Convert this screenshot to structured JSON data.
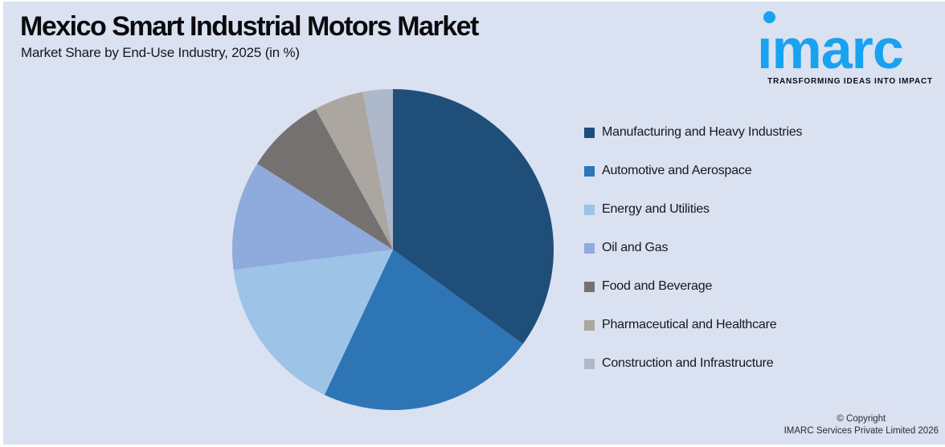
{
  "header": {
    "title": "Mexico Smart Industrial Motors Market",
    "subtitle": "Market Share by End-Use Industry, 2025 (in %)"
  },
  "logo": {
    "text": "imarc",
    "tagline": "TRANSFORMING IDEAS INTO IMPACT",
    "brand_color": "#18A2F0",
    "tagline_color": "#0D0F19"
  },
  "footer": {
    "line1": "© Copyright",
    "line2": "IMARC Services Private Limited 2026"
  },
  "colors": {
    "background": "#DAE1F0",
    "title_text": "#0B0B0E"
  },
  "chart_data": {
    "type": "pie",
    "title": "Mexico Smart Industrial Motors Market",
    "subtitle": "Market Share by End-Use Industry, 2025 (in %)",
    "unit": "%",
    "legend_position": "right",
    "start_angle_deg": 0,
    "direction": "clockwise",
    "categories": [
      "Manufacturing and Heavy Industries",
      "Automotive and Aerospace",
      "Energy and Utilities",
      "Oil and Gas",
      "Food and Beverage",
      "Pharmaceutical and Healthcare",
      "Construction and Infrastructure"
    ],
    "values": [
      35,
      22,
      16,
      11,
      8,
      5,
      3
    ],
    "colors": [
      "#1F4E79",
      "#2E75B6",
      "#9DC3E6",
      "#8FAADC",
      "#767171",
      "#ACA6A0",
      "#ADB9CA"
    ]
  }
}
